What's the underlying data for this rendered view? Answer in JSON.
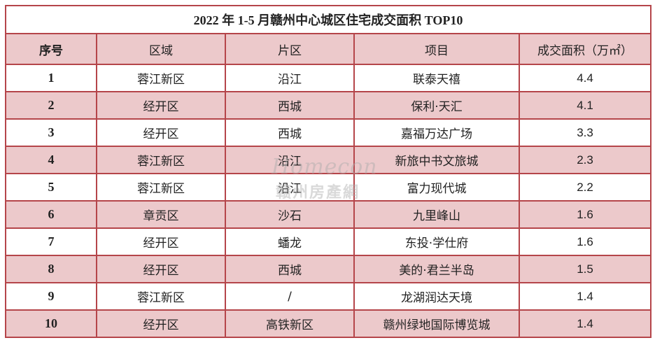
{
  "title": "2022 年 1-5 月赣州中心城区住宅成交面积 TOP10",
  "headers": {
    "rank": "序号",
    "district": "区域",
    "area_zone": "片区",
    "project": "项目",
    "deal_area": "成交面积（万㎡）"
  },
  "rows": [
    {
      "rank": "1",
      "district": "蓉江新区",
      "zone": "沿江",
      "project": "联泰天禧",
      "area": "4.4"
    },
    {
      "rank": "2",
      "district": "经开区",
      "zone": "西城",
      "project": "保利·天汇",
      "area": "4.1"
    },
    {
      "rank": "3",
      "district": "经开区",
      "zone": "西城",
      "project": "嘉福万达广场",
      "area": "3.3"
    },
    {
      "rank": "4",
      "district": "蓉江新区",
      "zone": "沿江",
      "project": "新旅中书文旅城",
      "area": "2.3"
    },
    {
      "rank": "5",
      "district": "蓉江新区",
      "zone": "沿江",
      "project": "富力现代城",
      "area": "2.2"
    },
    {
      "rank": "6",
      "district": "章贡区",
      "zone": "沙石",
      "project": "九里峰山",
      "area": "1.6"
    },
    {
      "rank": "7",
      "district": "经开区",
      "zone": "蟠龙",
      "project": "东投·学仕府",
      "area": "1.6"
    },
    {
      "rank": "8",
      "district": "经开区",
      "zone": "西城",
      "project": "美的·君兰半岛",
      "area": "1.5"
    },
    {
      "rank": "9",
      "district": "蓉江新区",
      "zone": "/",
      "project": "龙湖润达天境",
      "area": "1.4"
    },
    {
      "rank": "10",
      "district": "经开区",
      "zone": "高铁新区",
      "project": "赣州绿地国际博览城",
      "area": "1.4"
    }
  ],
  "watermark": {
    "script": "Homecon",
    "text": "赣州房產網"
  },
  "colors": {
    "border": "#b5454a",
    "alt_row": "#ecc9cb",
    "text": "#222222"
  }
}
